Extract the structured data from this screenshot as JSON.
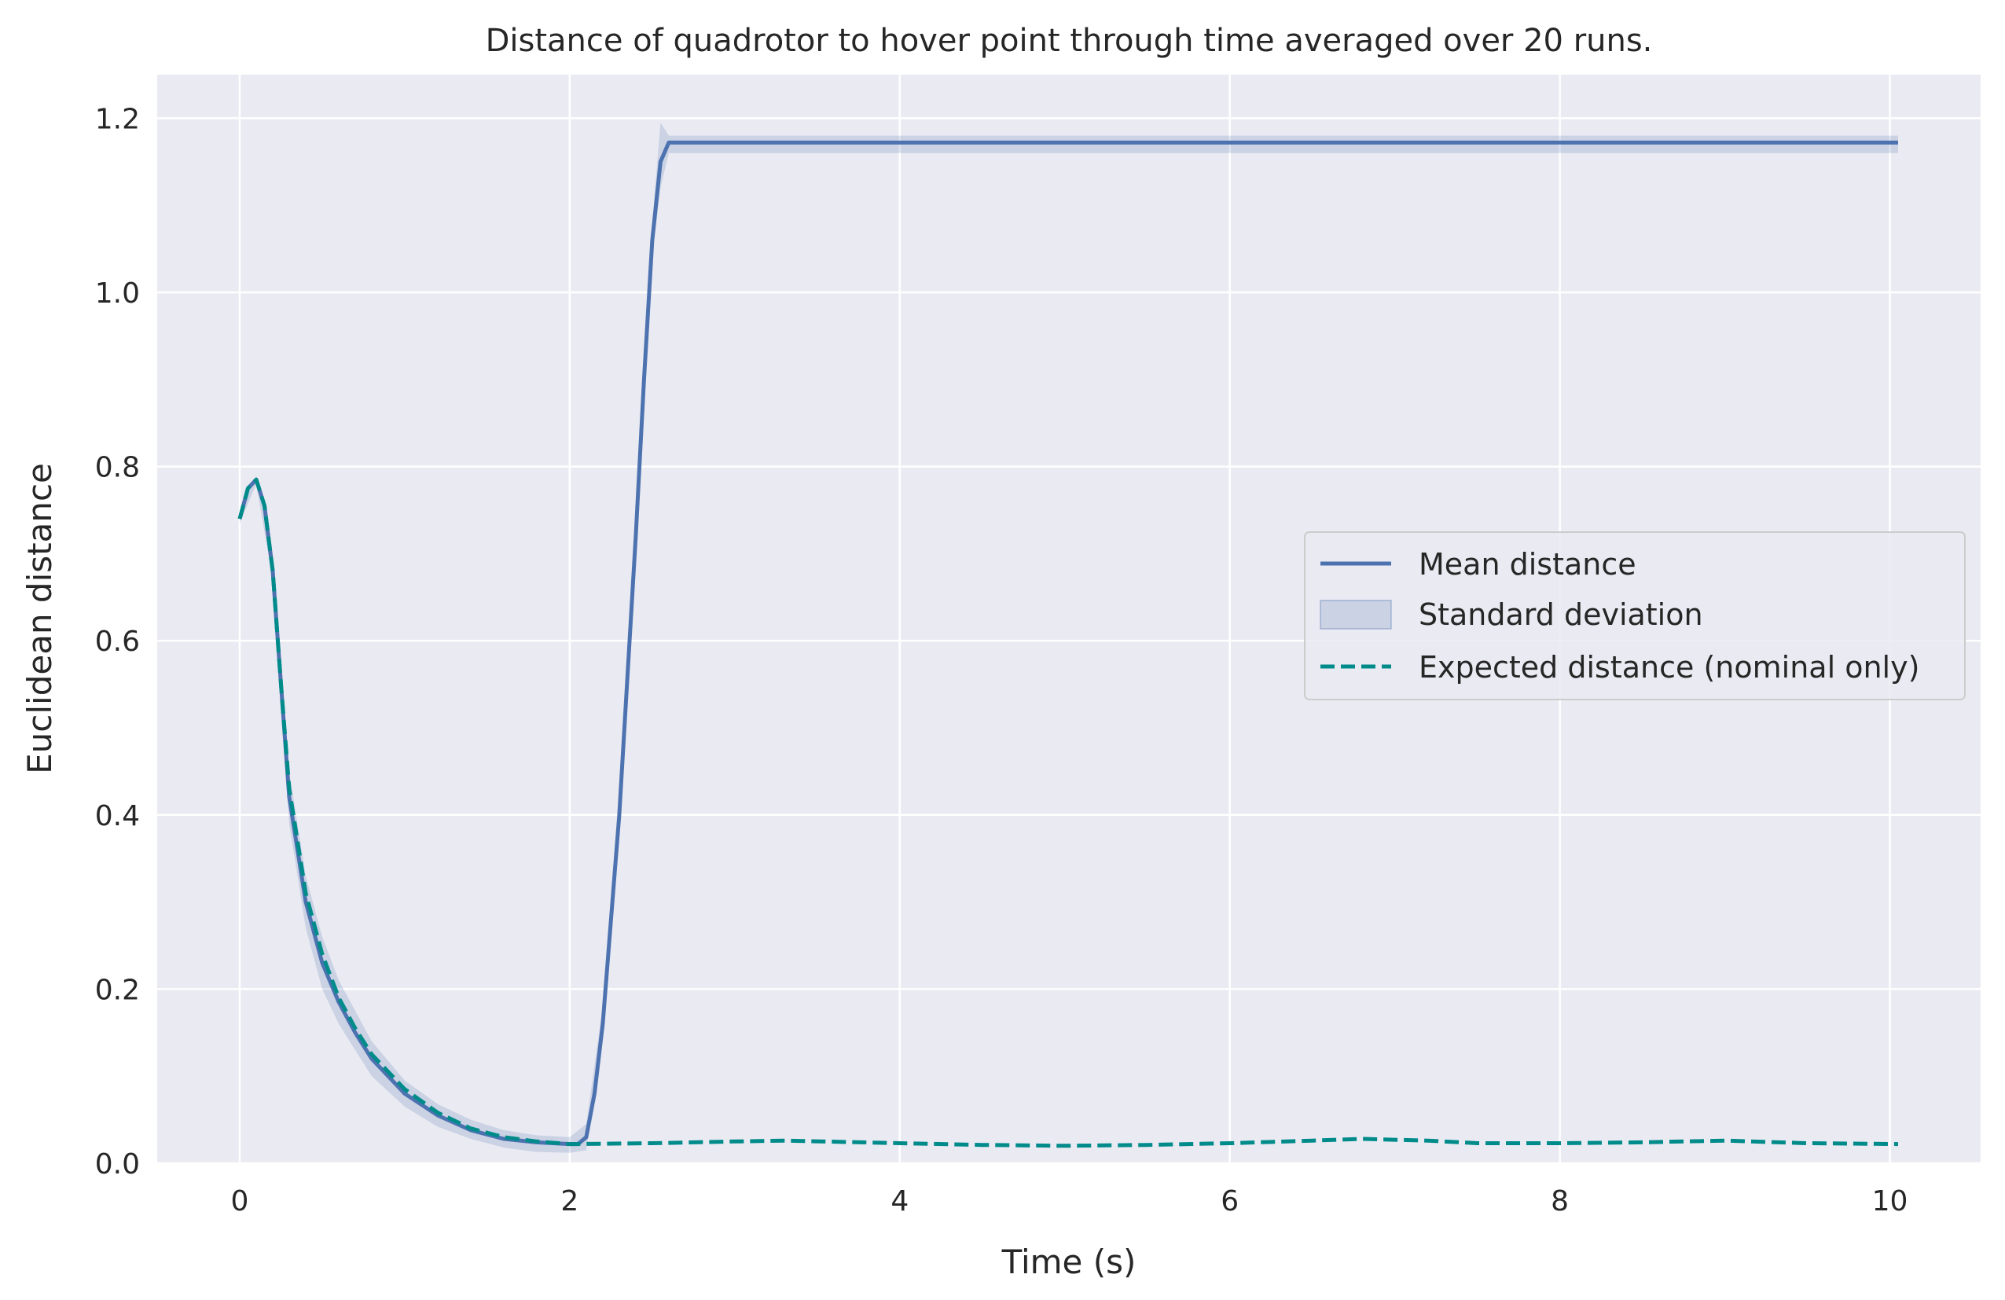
{
  "chart_data": {
    "type": "line",
    "title": "Distance of quadrotor to hover point through time averaged over 20 runs.",
    "xlabel": "Time (s)",
    "ylabel": "Euclidean distance",
    "xlim": [
      -0.5,
      10.55
    ],
    "ylim": [
      0,
      1.25
    ],
    "xticks": [
      0,
      2,
      4,
      6,
      8,
      10
    ],
    "xtick_labels": [
      "0",
      "2",
      "4",
      "6",
      "8",
      "10"
    ],
    "yticks": [
      0.0,
      0.2,
      0.4,
      0.6,
      0.8,
      1.0,
      1.2
    ],
    "ytick_labels": [
      "0.0",
      "0.2",
      "0.4",
      "0.6",
      "0.8",
      "1.0",
      "1.2"
    ],
    "grid": true,
    "legend_position": "center-right",
    "colors": {
      "background": "#eaeaf2",
      "grid": "#ffffff",
      "mean": "#4c72b0",
      "expected": "#008b8b"
    },
    "series": [
      {
        "name": "Mean distance",
        "style": "solid",
        "x": [
          0,
          0.05,
          0.1,
          0.15,
          0.2,
          0.25,
          0.3,
          0.4,
          0.5,
          0.6,
          0.7,
          0.8,
          1.0,
          1.2,
          1.4,
          1.6,
          1.8,
          2.0,
          2.05,
          2.1,
          2.15,
          2.2,
          2.3,
          2.4,
          2.45,
          2.5,
          2.55,
          2.6,
          3.0,
          4.0,
          5.0,
          6.0,
          7.0,
          8.0,
          9.0,
          10.05
        ],
        "y": [
          0.74,
          0.775,
          0.785,
          0.755,
          0.68,
          0.55,
          0.42,
          0.3,
          0.23,
          0.185,
          0.15,
          0.12,
          0.08,
          0.055,
          0.038,
          0.028,
          0.024,
          0.022,
          0.022,
          0.03,
          0.08,
          0.16,
          0.4,
          0.72,
          0.9,
          1.06,
          1.15,
          1.172,
          1.172,
          1.172,
          1.172,
          1.172,
          1.172,
          1.172,
          1.172,
          1.172
        ]
      },
      {
        "name": "Standard deviation",
        "style": "band",
        "x": [
          0,
          0.1,
          0.2,
          0.3,
          0.4,
          0.5,
          0.6,
          0.8,
          1.0,
          1.2,
          1.4,
          1.6,
          1.8,
          2.0,
          2.1,
          2.2,
          2.3,
          2.4,
          2.5,
          2.55,
          2.6,
          3.0,
          10.05
        ],
        "lower": [
          0.735,
          0.78,
          0.67,
          0.39,
          0.27,
          0.2,
          0.16,
          0.1,
          0.065,
          0.042,
          0.028,
          0.018,
          0.013,
          0.012,
          0.015,
          0.14,
          0.38,
          0.7,
          1.04,
          1.12,
          1.16,
          1.16,
          1.16
        ],
        "upper": [
          0.745,
          0.79,
          0.69,
          0.45,
          0.33,
          0.26,
          0.21,
          0.14,
          0.095,
          0.068,
          0.05,
          0.038,
          0.032,
          0.03,
          0.045,
          0.18,
          0.42,
          0.74,
          1.08,
          1.195,
          1.18,
          1.18,
          1.18
        ]
      },
      {
        "name": "Expected distance (nominal only)",
        "style": "dashed",
        "x": [
          0,
          0.05,
          0.1,
          0.15,
          0.2,
          0.25,
          0.3,
          0.4,
          0.5,
          0.6,
          0.7,
          0.8,
          1.0,
          1.2,
          1.4,
          1.6,
          1.8,
          2.0,
          2.5,
          3.0,
          3.3,
          4.0,
          4.5,
          5.0,
          5.5,
          6.0,
          6.5,
          6.8,
          7.2,
          7.5,
          8.0,
          8.5,
          9.0,
          9.5,
          10.05
        ],
        "y": [
          0.74,
          0.775,
          0.785,
          0.755,
          0.68,
          0.55,
          0.43,
          0.31,
          0.24,
          0.19,
          0.155,
          0.125,
          0.085,
          0.058,
          0.04,
          0.03,
          0.025,
          0.022,
          0.023,
          0.025,
          0.026,
          0.023,
          0.021,
          0.02,
          0.021,
          0.023,
          0.026,
          0.028,
          0.026,
          0.023,
          0.023,
          0.024,
          0.026,
          0.023,
          0.022
        ]
      }
    ]
  }
}
